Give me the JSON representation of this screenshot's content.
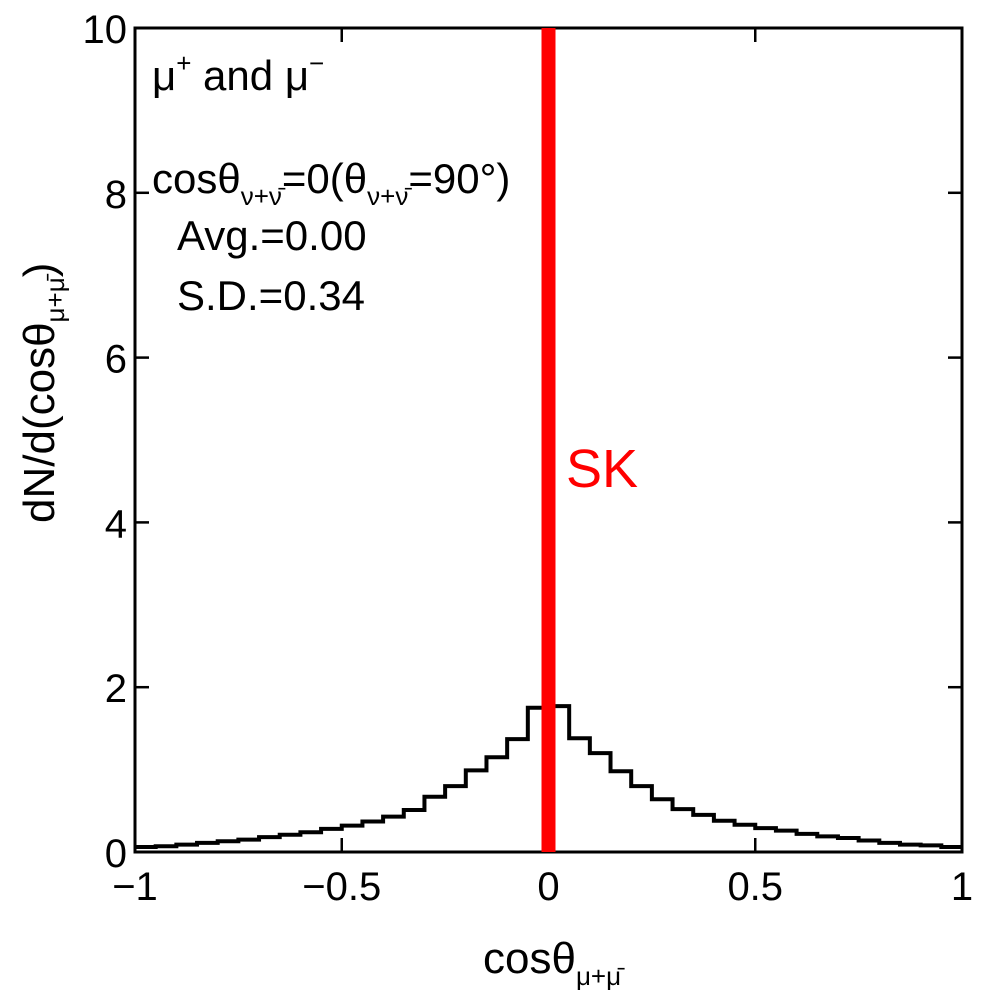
{
  "chart_data": {
    "type": "line",
    "xlabel": "cosθ",
    "xlabel_sub": "μ+μ̄",
    "ylabel": "dN/d(cosθ",
    "ylabel_sub": "μ+μ̄",
    "ylabel_close": ")",
    "xlim": [
      -1,
      1
    ],
    "ylim": [
      0,
      10
    ],
    "x_ticks": [
      -1,
      -0.5,
      0,
      0.5,
      1
    ],
    "x_tick_labels": [
      "−1",
      "−0.5",
      "0",
      "0.5",
      "1"
    ],
    "y_ticks": [
      0,
      2,
      4,
      6,
      8,
      10
    ],
    "y_tick_labels": [
      "0",
      "2",
      "4",
      "6",
      "8",
      "10"
    ],
    "grid": false,
    "histogram": {
      "name": "",
      "color": "#000000",
      "bin_edges": [
        -1.0,
        -0.95,
        -0.9,
        -0.85,
        -0.8,
        -0.75,
        -0.7,
        -0.65,
        -0.6,
        -0.55,
        -0.5,
        -0.45,
        -0.4,
        -0.35,
        -0.3,
        -0.25,
        -0.2,
        -0.15,
        -0.1,
        -0.05,
        0.0,
        0.05,
        0.1,
        0.15,
        0.2,
        0.25,
        0.3,
        0.35,
        0.4,
        0.45,
        0.5,
        0.55,
        0.6,
        0.65,
        0.7,
        0.75,
        0.8,
        0.85,
        0.9,
        0.95,
        1.0
      ],
      "values": [
        0.06,
        0.07,
        0.09,
        0.11,
        0.13,
        0.15,
        0.18,
        0.21,
        0.24,
        0.28,
        0.32,
        0.37,
        0.43,
        0.51,
        0.67,
        0.8,
        0.99,
        1.15,
        1.37,
        1.75,
        1.77,
        1.38,
        1.2,
        0.98,
        0.8,
        0.64,
        0.52,
        0.45,
        0.38,
        0.33,
        0.29,
        0.26,
        0.22,
        0.19,
        0.17,
        0.14,
        0.11,
        0.09,
        0.08,
        0.06
      ]
    },
    "reference_line": {
      "x": 0,
      "label": "SK",
      "color": "#ff0000"
    },
    "annotations": {
      "species": {
        "mu": "μ",
        "plus": "+",
        "and": " and ",
        "mu2": "μ",
        "minus": "−"
      },
      "condition": {
        "cos": "cosθ",
        "sub1": "ν+ν̄",
        "eq": "=0(θ",
        "sub2": "ν+ν̄",
        "val": "=90°)"
      },
      "avg": "Avg.=0.00",
      "sd": "S.D.=0.34"
    }
  }
}
